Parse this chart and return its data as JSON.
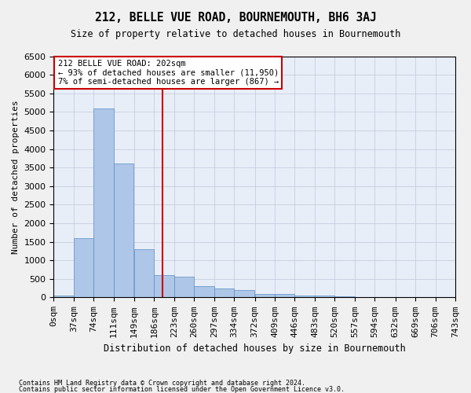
{
  "title": "212, BELLE VUE ROAD, BOURNEMOUTH, BH6 3AJ",
  "subtitle": "Size of property relative to detached houses in Bournemouth",
  "xlabel": "Distribution of detached houses by size in Bournemouth",
  "ylabel": "Number of detached properties",
  "footer1": "Contains HM Land Registry data © Crown copyright and database right 2024.",
  "footer2": "Contains public sector information licensed under the Open Government Licence v3.0.",
  "annotation_line1": "212 BELLE VUE ROAD: 202sqm",
  "annotation_line2": "← 93% of detached houses are smaller (11,950)",
  "annotation_line3": "7% of semi-detached houses are larger (867) →",
  "bar_color": "#aec6e8",
  "bar_edge_color": "#5a8fc0",
  "vline_color": "#cc0000",
  "vline_x": 202,
  "bin_edges": [
    0,
    37,
    74,
    111,
    149,
    186,
    223,
    260,
    297,
    334,
    372,
    409,
    446,
    483,
    520,
    557,
    594,
    632,
    669,
    706,
    743
  ],
  "bar_heights": [
    50,
    1600,
    5100,
    3600,
    1300,
    600,
    550,
    300,
    250,
    200,
    100,
    100,
    50,
    50,
    30,
    20,
    10,
    5,
    5,
    2
  ],
  "ylim": [
    0,
    6500
  ],
  "xlim": [
    0,
    743
  ],
  "yticks": [
    0,
    500,
    1000,
    1500,
    2000,
    2500,
    3000,
    3500,
    4000,
    4500,
    5000,
    5500,
    6000,
    6500
  ],
  "xtick_labels": [
    "0sqm",
    "37sqm",
    "74sqm",
    "111sqm",
    "149sqm",
    "186sqm",
    "223sqm",
    "260sqm",
    "297sqm",
    "334sqm",
    "372sqm",
    "409sqm",
    "446sqm",
    "483sqm",
    "520sqm",
    "557sqm",
    "594sqm",
    "632sqm",
    "669sqm",
    "706sqm",
    "743sqm"
  ],
  "background_color": "#e8eef8",
  "annotation_box_color": "#ffffff",
  "annotation_box_edge": "#cc0000",
  "grid_color": "#c0c8d8",
  "fig_bg": "#f0f0f0"
}
